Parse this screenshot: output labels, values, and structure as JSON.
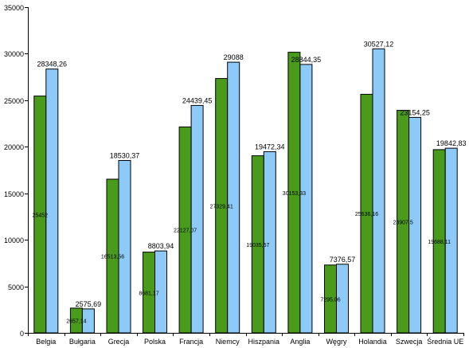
{
  "chart_data": {
    "type": "bar",
    "title": "",
    "xlabel": "",
    "ylabel": "",
    "ylim": [
      0,
      35000
    ],
    "yticks": [
      "0",
      "5000",
      "10000",
      "15000",
      "20000",
      "25000",
      "30000",
      "35000"
    ],
    "grid": false,
    "legend": "none",
    "categories": [
      "Belgia",
      "Bułgaria",
      "Grecja",
      "Polska",
      "Francja",
      "Niemcy",
      "Hiszpania",
      "Anglia",
      "Węgry",
      "Holandia",
      "Szwecja",
      "Średnia UE"
    ],
    "series": [
      {
        "color": "#4a9a1c",
        "values": [
          25452,
          2657.14,
          16513.56,
          8681.17,
          22127.07,
          27329.41,
          19035.57,
          30153.33,
          7295.06,
          25636.16,
          23907.5,
          19688.11
        ],
        "labels": [
          "25452",
          "2657,14",
          "16513,56",
          "8681,17",
          "22127,07",
          "27329,41",
          "19035,57",
          "30153,33",
          "7295,06",
          "25636,16",
          "23907,5",
          "19688,11"
        ]
      },
      {
        "color": "#8ecaf8",
        "values": [
          28348.26,
          2575.69,
          18530.37,
          8803.94,
          24439.45,
          29088,
          19472.34,
          28844.35,
          7376.57,
          30527.12,
          23154.25,
          19842.83
        ],
        "labels": [
          "28348,26",
          "2575,69",
          "18530,37",
          "8803,94",
          "24439,45",
          "29088",
          "19472,34",
          "28844,35",
          "7376,57",
          "30527,12",
          "23154,25",
          "19842,83"
        ]
      }
    ]
  }
}
